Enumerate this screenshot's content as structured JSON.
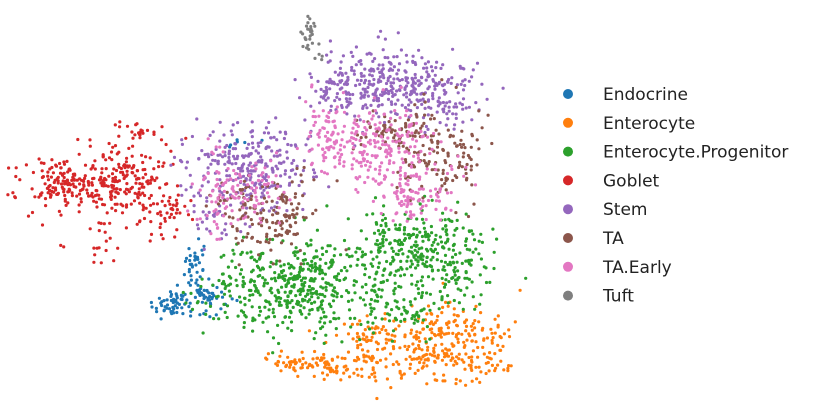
{
  "chart_data": {
    "type": "scatter",
    "title": "",
    "xlabel": "",
    "ylabel": "",
    "axes_visible": false,
    "grid": false,
    "legend_placement": "right",
    "xlim": [
      -12,
      12
    ],
    "ylim": [
      -11,
      11
    ],
    "series": [
      {
        "name": "Endocrine",
        "color": "#1f77b4",
        "clusters": [
          {
            "cx": -5.2,
            "cy": -6.0,
            "sx": 0.45,
            "sy": 0.5,
            "n": 55
          },
          {
            "cx": -3.5,
            "cy": -5.6,
            "sx": 0.55,
            "sy": 0.5,
            "n": 50
          },
          {
            "cx": -4.0,
            "cy": -3.6,
            "sx": 0.25,
            "sy": 0.8,
            "n": 35
          },
          {
            "cx": -1.7,
            "cy": 3.7,
            "sx": 0.4,
            "sy": 0.12,
            "n": 6
          }
        ]
      },
      {
        "name": "Enterocyte",
        "color": "#ff7f0e",
        "clusters": [
          {
            "cx": 7.8,
            "cy": -8.8,
            "sx": 1.6,
            "sy": 0.9,
            "n": 210
          },
          {
            "cx": 8.3,
            "cy": -7.3,
            "sx": 1.3,
            "sy": 0.8,
            "n": 80
          },
          {
            "cx": 4.3,
            "cy": -8.5,
            "sx": 0.6,
            "sy": 1.0,
            "n": 70
          },
          {
            "cx": 2.2,
            "cy": -9.6,
            "sx": 1.1,
            "sy": 0.4,
            "n": 65
          },
          {
            "cx": 0.2,
            "cy": -9.2,
            "sx": 0.9,
            "sy": 0.35,
            "n": 30
          }
        ]
      },
      {
        "name": "Enterocyte.Progenitor",
        "color": "#2ca02c",
        "clusters": [
          {
            "cx": 0.0,
            "cy": -5.0,
            "sx": 1.6,
            "sy": 1.3,
            "n": 330
          },
          {
            "cx": 2.0,
            "cy": -4.0,
            "sx": 0.9,
            "sy": 1.4,
            "n": 110
          },
          {
            "cx": 5.5,
            "cy": -2.5,
            "sx": 1.2,
            "sy": 1.3,
            "n": 160
          },
          {
            "cx": 7.8,
            "cy": -3.0,
            "sx": 1.2,
            "sy": 1.5,
            "n": 190
          },
          {
            "cx": 6.4,
            "cy": -6.6,
            "sx": 0.5,
            "sy": 0.8,
            "n": 40
          },
          {
            "cx": 4.6,
            "cy": -5.8,
            "sx": 0.6,
            "sy": 1.0,
            "n": 50
          }
        ]
      },
      {
        "name": "Goblet",
        "color": "#d62728",
        "clusters": [
          {
            "cx": -10.0,
            "cy": 1.2,
            "sx": 1.4,
            "sy": 0.9,
            "n": 200
          },
          {
            "cx": -7.0,
            "cy": 1.4,
            "sx": 1.0,
            "sy": 1.4,
            "n": 170
          },
          {
            "cx": -5.4,
            "cy": -0.2,
            "sx": 0.5,
            "sy": 0.4,
            "n": 25
          },
          {
            "cx": -8.6,
            "cy": -2.4,
            "sx": 0.4,
            "sy": 0.5,
            "n": 12
          },
          {
            "cx": -6.7,
            "cy": 4.3,
            "sx": 0.5,
            "sy": 0.3,
            "n": 18
          }
        ]
      },
      {
        "name": "Stem",
        "color": "#9467bd",
        "clusters": [
          {
            "cx": -1.4,
            "cy": 2.2,
            "sx": 1.5,
            "sy": 1.3,
            "n": 280
          },
          {
            "cx": 4.8,
            "cy": 7.4,
            "sx": 1.3,
            "sy": 1.0,
            "n": 200
          },
          {
            "cx": 7.5,
            "cy": 6.6,
            "sx": 1.1,
            "sy": 1.0,
            "n": 150
          },
          {
            "cx": 2.5,
            "cy": 6.8,
            "sx": 0.8,
            "sy": 0.7,
            "n": 60
          },
          {
            "cx": -3.4,
            "cy": -1.4,
            "sx": 0.6,
            "sy": 0.6,
            "n": 25
          }
        ]
      },
      {
        "name": "TA",
        "color": "#8c564b",
        "clusters": [
          {
            "cx": -0.2,
            "cy": -0.6,
            "sx": 1.0,
            "sy": 1.1,
            "n": 130
          },
          {
            "cx": 7.6,
            "cy": 3.0,
            "sx": 1.1,
            "sy": 1.4,
            "n": 130
          },
          {
            "cx": 5.5,
            "cy": 4.4,
            "sx": 1.0,
            "sy": 0.7,
            "n": 60
          },
          {
            "cx": -2.1,
            "cy": 0.2,
            "sx": 0.6,
            "sy": 0.6,
            "n": 30
          }
        ]
      },
      {
        "name": "TA.Early",
        "color": "#e377c2",
        "clusters": [
          {
            "cx": -2.8,
            "cy": 0.6,
            "sx": 0.7,
            "sy": 1.2,
            "n": 75
          },
          {
            "cx": -1.0,
            "cy": 0.8,
            "sx": 0.8,
            "sy": 0.9,
            "n": 50
          },
          {
            "cx": 4.6,
            "cy": 3.4,
            "sx": 1.4,
            "sy": 1.2,
            "n": 220
          },
          {
            "cx": 6.6,
            "cy": 0.8,
            "sx": 1.0,
            "sy": 0.9,
            "n": 100
          },
          {
            "cx": 2.4,
            "cy": 4.6,
            "sx": 0.5,
            "sy": 1.2,
            "n": 50
          }
        ]
      },
      {
        "name": "Tuft",
        "color": "#7f7f7f",
        "clusters": [
          {
            "cx": 1.3,
            "cy": 10.3,
            "sx": 0.2,
            "sy": 0.6,
            "n": 30
          },
          {
            "cx": 1.9,
            "cy": 9.0,
            "sx": 0.2,
            "sy": 0.3,
            "n": 4
          }
        ]
      }
    ]
  }
}
